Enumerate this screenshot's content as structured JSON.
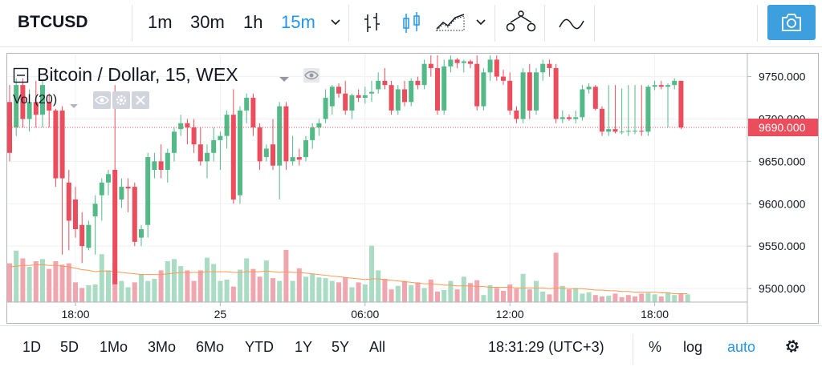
{
  "toolbar": {
    "symbol": "BTCUSD",
    "intervals": [
      "1m",
      "30m",
      "1h",
      "15m"
    ],
    "active_interval": "15m"
  },
  "legend": {
    "title": "Bitcoin / Dollar, 15, WEX",
    "volume_label": "Vol (20)"
  },
  "bottom": {
    "ranges": [
      "1D",
      "5D",
      "1Mo",
      "3Mo",
      "6Mo",
      "YTD",
      "1Y",
      "5Y",
      "All"
    ],
    "clock": "18:31:29 (UTC+3)",
    "percent_label": "%",
    "log_label": "log",
    "auto_label": "auto"
  },
  "colors": {
    "up": "#53b987",
    "down": "#eb4d5c",
    "up_volume": "#a9dcc3",
    "down_volume": "#f0a6ae",
    "volume_ma": "#ff9850",
    "last_price": "#eb4d5c",
    "active": "#2196f3",
    "camera_button": "#3d9fdd"
  },
  "chart_data": {
    "type": "candlestick",
    "symbol": "BTCUSD",
    "interval": "15",
    "exchange": "WEX",
    "last_price_label": "9690.000",
    "last_price": 9690,
    "y_ticks": [
      "9750.000",
      "9700.000",
      "9650.000",
      "9600.000",
      "9550.000",
      "9500.000"
    ],
    "y_tick_values": [
      9750,
      9700,
      9650,
      9600,
      9550,
      9500
    ],
    "ylim": [
      9484,
      9777
    ],
    "x_ticks": [
      "18:00",
      "25",
      "06:00",
      "12:00",
      "18:00"
    ],
    "x_tick_bar_index": [
      10,
      32,
      54,
      76,
      98
    ],
    "grid": true,
    "volume_overlay": {
      "label": "Vol (20)",
      "max_relative_height": 1.0,
      "values": [
        0.55,
        0.73,
        0.62,
        0.5,
        0.58,
        0.61,
        0.47,
        0.58,
        0.53,
        0.55,
        0.28,
        0.2,
        0.24,
        0.25,
        0.68,
        0.45,
        0.56,
        0.3,
        0.21,
        0.28,
        0.4,
        0.3,
        0.33,
        0.45,
        0.58,
        0.61,
        0.51,
        0.45,
        0.3,
        0.45,
        0.63,
        0.54,
        0.3,
        0.32,
        0.22,
        0.46,
        0.62,
        0.47,
        0.36,
        0.59,
        0.34,
        0.3,
        0.74,
        0.3,
        0.48,
        0.36,
        0.4,
        0.35,
        0.34,
        0.3,
        0.28,
        0.35,
        0.21,
        0.28,
        0.25,
        0.8,
        0.45,
        0.33,
        0.18,
        0.23,
        0.3,
        0.24,
        0.28,
        0.2,
        0.32,
        0.15,
        0.17,
        0.3,
        0.18,
        0.36,
        0.27,
        0.31,
        0.1,
        0.24,
        0.2,
        0.16,
        0.25,
        0.19,
        0.4,
        0.18,
        0.3,
        0.15,
        0.11,
        0.7,
        0.23,
        0.18,
        0.2,
        0.12,
        0.14,
        0.1,
        0.08,
        0.09,
        0.12,
        0.07,
        0.1,
        0.08,
        0.12,
        0.13,
        0.11,
        0.08,
        0.14,
        0.1,
        0.12,
        0.11
      ],
      "ma": [
        0.5,
        0.51,
        0.52,
        0.52,
        0.53,
        0.53,
        0.52,
        0.52,
        0.51,
        0.5,
        0.48,
        0.46,
        0.45,
        0.43,
        0.44,
        0.44,
        0.43,
        0.42,
        0.41,
        0.4,
        0.39,
        0.39,
        0.39,
        0.39,
        0.4,
        0.41,
        0.42,
        0.42,
        0.42,
        0.42,
        0.43,
        0.43,
        0.43,
        0.43,
        0.42,
        0.42,
        0.43,
        0.43,
        0.43,
        0.44,
        0.43,
        0.42,
        0.43,
        0.42,
        0.42,
        0.41,
        0.4,
        0.39,
        0.38,
        0.37,
        0.36,
        0.35,
        0.34,
        0.33,
        0.32,
        0.33,
        0.33,
        0.32,
        0.31,
        0.3,
        0.29,
        0.28,
        0.27,
        0.26,
        0.26,
        0.25,
        0.24,
        0.24,
        0.23,
        0.23,
        0.23,
        0.22,
        0.22,
        0.21,
        0.21,
        0.21,
        0.21,
        0.2,
        0.2,
        0.2,
        0.2,
        0.2,
        0.19,
        0.2,
        0.2,
        0.19,
        0.19,
        0.19,
        0.18,
        0.17,
        0.17,
        0.16,
        0.16,
        0.15,
        0.15,
        0.14,
        0.14,
        0.14,
        0.14,
        0.13,
        0.13,
        0.12,
        0.12,
        0.12
      ]
    },
    "candles": [
      {
        "o": 9720,
        "h": 9740,
        "l": 9650,
        "c": 9660,
        "v_up": false
      },
      {
        "o": 9690,
        "h": 9748,
        "l": 9680,
        "c": 9740,
        "v_up": true
      },
      {
        "o": 9740,
        "h": 9748,
        "l": 9690,
        "c": 9700,
        "v_up": false
      },
      {
        "o": 9700,
        "h": 9735,
        "l": 9685,
        "c": 9720,
        "v_up": true
      },
      {
        "o": 9720,
        "h": 9745,
        "l": 9690,
        "c": 9705,
        "v_up": false
      },
      {
        "o": 9705,
        "h": 9745,
        "l": 9690,
        "c": 9740,
        "v_up": true
      },
      {
        "o": 9720,
        "h": 9730,
        "l": 9690,
        "c": 9710,
        "v_up": false
      },
      {
        "o": 9710,
        "h": 9712,
        "l": 9620,
        "c": 9630,
        "v_up": false
      },
      {
        "o": 9710,
        "h": 9715,
        "l": 9540,
        "c": 9630,
        "v_up": false
      },
      {
        "o": 9625,
        "h": 9640,
        "l": 9545,
        "c": 9580,
        "v_up": false
      },
      {
        "o": 9605,
        "h": 9620,
        "l": 9560,
        "c": 9570,
        "v_up": false
      },
      {
        "o": 9575,
        "h": 9590,
        "l": 9530,
        "c": 9550,
        "v_up": false
      },
      {
        "o": 9548,
        "h": 9580,
        "l": 9545,
        "c": 9575,
        "v_up": true
      },
      {
        "o": 9585,
        "h": 9610,
        "l": 9540,
        "c": 9600,
        "v_up": true
      },
      {
        "o": 9610,
        "h": 9630,
        "l": 9580,
        "c": 9625,
        "v_up": true
      },
      {
        "o": 9625,
        "h": 9640,
        "l": 9610,
        "c": 9635,
        "v_up": true
      },
      {
        "o": 9640,
        "h": 9740,
        "l": 9505,
        "c": 9505,
        "v_up": false
      },
      {
        "o": 9605,
        "h": 9630,
        "l": 9595,
        "c": 9620,
        "v_up": true
      },
      {
        "o": 9620,
        "h": 9630,
        "l": 9590,
        "c": 9618,
        "v_up": true
      },
      {
        "o": 9620,
        "h": 9625,
        "l": 9550,
        "c": 9555,
        "v_up": false
      },
      {
        "o": 9560,
        "h": 9575,
        "l": 9550,
        "c": 9570,
        "v_up": true
      },
      {
        "o": 9575,
        "h": 9660,
        "l": 9560,
        "c": 9655,
        "v_up": true
      },
      {
        "o": 9640,
        "h": 9660,
        "l": 9630,
        "c": 9650,
        "v_up": true
      },
      {
        "o": 9650,
        "h": 9670,
        "l": 9630,
        "c": 9640,
        "v_up": false
      },
      {
        "o": 9640,
        "h": 9665,
        "l": 9625,
        "c": 9660,
        "v_up": true
      },
      {
        "o": 9660,
        "h": 9690,
        "l": 9650,
        "c": 9685,
        "v_up": true
      },
      {
        "o": 9688,
        "h": 9705,
        "l": 9680,
        "c": 9695,
        "v_up": true
      },
      {
        "o": 9695,
        "h": 9700,
        "l": 9670,
        "c": 9690,
        "v_up": false
      },
      {
        "o": 9690,
        "h": 9700,
        "l": 9660,
        "c": 9670,
        "v_up": false
      },
      {
        "o": 9670,
        "h": 9690,
        "l": 9645,
        "c": 9650,
        "v_up": false
      },
      {
        "o": 9650,
        "h": 9670,
        "l": 9630,
        "c": 9660,
        "v_up": true
      },
      {
        "o": 9660,
        "h": 9690,
        "l": 9650,
        "c": 9675,
        "v_up": true
      },
      {
        "o": 9675,
        "h": 9685,
        "l": 9640,
        "c": 9680,
        "v_up": true
      },
      {
        "o": 9680,
        "h": 9710,
        "l": 9665,
        "c": 9705,
        "v_up": true
      },
      {
        "o": 9705,
        "h": 9735,
        "l": 9600,
        "c": 9605,
        "v_up": false
      },
      {
        "o": 9610,
        "h": 9715,
        "l": 9600,
        "c": 9710,
        "v_up": true
      },
      {
        "o": 9710,
        "h": 9730,
        "l": 9695,
        "c": 9725,
        "v_up": true
      },
      {
        "o": 9725,
        "h": 9730,
        "l": 9680,
        "c": 9690,
        "v_up": false
      },
      {
        "o": 9690,
        "h": 9695,
        "l": 9640,
        "c": 9650,
        "v_up": false
      },
      {
        "o": 9655,
        "h": 9670,
        "l": 9650,
        "c": 9665,
        "v_up": true
      },
      {
        "o": 9670,
        "h": 9700,
        "l": 9640,
        "c": 9645,
        "v_up": false
      },
      {
        "o": 9645,
        "h": 9720,
        "l": 9605,
        "c": 9715,
        "v_up": true
      },
      {
        "o": 9715,
        "h": 9720,
        "l": 9640,
        "c": 9650,
        "v_up": false
      },
      {
        "o": 9650,
        "h": 9680,
        "l": 9645,
        "c": 9655,
        "v_up": true
      },
      {
        "o": 9655,
        "h": 9665,
        "l": 9645,
        "c": 9652,
        "v_up": false
      },
      {
        "o": 9655,
        "h": 9680,
        "l": 9650,
        "c": 9675,
        "v_up": true
      },
      {
        "o": 9675,
        "h": 9695,
        "l": 9665,
        "c": 9690,
        "v_up": true
      },
      {
        "o": 9690,
        "h": 9700,
        "l": 9680,
        "c": 9695,
        "v_up": true
      },
      {
        "o": 9700,
        "h": 9735,
        "l": 9695,
        "c": 9725,
        "v_up": true
      },
      {
        "o": 9715,
        "h": 9740,
        "l": 9705,
        "c": 9738,
        "v_up": true
      },
      {
        "o": 9738,
        "h": 9742,
        "l": 9725,
        "c": 9730,
        "v_up": false
      },
      {
        "o": 9730,
        "h": 9745,
        "l": 9705,
        "c": 9710,
        "v_up": false
      },
      {
        "o": 9710,
        "h": 9730,
        "l": 9700,
        "c": 9728,
        "v_up": true
      },
      {
        "o": 9728,
        "h": 9735,
        "l": 9720,
        "c": 9725,
        "v_up": false
      },
      {
        "o": 9725,
        "h": 9738,
        "l": 9718,
        "c": 9728,
        "v_up": true
      },
      {
        "o": 9730,
        "h": 9745,
        "l": 9720,
        "c": 9732,
        "v_up": true
      },
      {
        "o": 9735,
        "h": 9755,
        "l": 9730,
        "c": 9745,
        "v_up": true
      },
      {
        "o": 9745,
        "h": 9760,
        "l": 9735,
        "c": 9740,
        "v_up": false
      },
      {
        "o": 9740,
        "h": 9745,
        "l": 9705,
        "c": 9710,
        "v_up": false
      },
      {
        "o": 9710,
        "h": 9740,
        "l": 9705,
        "c": 9735,
        "v_up": true
      },
      {
        "o": 9735,
        "h": 9745,
        "l": 9715,
        "c": 9720,
        "v_up": false
      },
      {
        "o": 9720,
        "h": 9748,
        "l": 9715,
        "c": 9745,
        "v_up": true
      },
      {
        "o": 9745,
        "h": 9750,
        "l": 9735,
        "c": 9740,
        "v_up": false
      },
      {
        "o": 9740,
        "h": 9770,
        "l": 9735,
        "c": 9765,
        "v_up": true
      },
      {
        "o": 9765,
        "h": 9775,
        "l": 9750,
        "c": 9760,
        "v_up": false
      },
      {
        "o": 9760,
        "h": 9775,
        "l": 9705,
        "c": 9710,
        "v_up": false
      },
      {
        "o": 9710,
        "h": 9770,
        "l": 9705,
        "c": 9762,
        "v_up": true
      },
      {
        "o": 9762,
        "h": 9775,
        "l": 9755,
        "c": 9770,
        "v_up": true
      },
      {
        "o": 9770,
        "h": 9772,
        "l": 9760,
        "c": 9766,
        "v_up": false
      },
      {
        "o": 9766,
        "h": 9770,
        "l": 9755,
        "c": 9768,
        "v_up": true
      },
      {
        "o": 9768,
        "h": 9770,
        "l": 9760,
        "c": 9765,
        "v_up": false
      },
      {
        "o": 9765,
        "h": 9775,
        "l": 9710,
        "c": 9715,
        "v_up": false
      },
      {
        "o": 9715,
        "h": 9760,
        "l": 9710,
        "c": 9755,
        "v_up": true
      },
      {
        "o": 9755,
        "h": 9775,
        "l": 9745,
        "c": 9770,
        "v_up": true
      },
      {
        "o": 9770,
        "h": 9775,
        "l": 9745,
        "c": 9750,
        "v_up": false
      },
      {
        "o": 9750,
        "h": 9758,
        "l": 9740,
        "c": 9745,
        "v_up": false
      },
      {
        "o": 9745,
        "h": 9755,
        "l": 9705,
        "c": 9710,
        "v_up": false
      },
      {
        "o": 9710,
        "h": 9715,
        "l": 9695,
        "c": 9700,
        "v_up": false
      },
      {
        "o": 9700,
        "h": 9760,
        "l": 9695,
        "c": 9755,
        "v_up": true
      },
      {
        "o": 9755,
        "h": 9765,
        "l": 9700,
        "c": 9710,
        "v_up": false
      },
      {
        "o": 9710,
        "h": 9760,
        "l": 9705,
        "c": 9755,
        "v_up": true
      },
      {
        "o": 9755,
        "h": 9770,
        "l": 9745,
        "c": 9765,
        "v_up": true
      },
      {
        "o": 9765,
        "h": 9770,
        "l": 9750,
        "c": 9760,
        "v_up": false
      },
      {
        "o": 9760,
        "h": 9765,
        "l": 9695,
        "c": 9700,
        "v_up": false
      },
      {
        "o": 9700,
        "h": 9710,
        "l": 9695,
        "c": 9702,
        "v_up": true
      },
      {
        "o": 9702,
        "h": 9705,
        "l": 9698,
        "c": 9700,
        "v_up": false
      },
      {
        "o": 9700,
        "h": 9710,
        "l": 9695,
        "c": 9702,
        "v_up": true
      },
      {
        "o": 9702,
        "h": 9740,
        "l": 9698,
        "c": 9735,
        "v_up": true
      },
      {
        "o": 9735,
        "h": 9742,
        "l": 9730,
        "c": 9738,
        "v_up": true
      },
      {
        "o": 9738,
        "h": 9740,
        "l": 9710,
        "c": 9712,
        "v_up": false
      },
      {
        "o": 9712,
        "h": 9715,
        "l": 9680,
        "c": 9685,
        "v_up": false
      },
      {
        "o": 9685,
        "h": 9740,
        "l": 9680,
        "c": 9688,
        "v_up": true
      },
      {
        "o": 9688,
        "h": 9740,
        "l": 9683,
        "c": 9685,
        "v_up": false
      },
      {
        "o": 9685,
        "h": 9736,
        "l": 9682,
        "c": 9685,
        "v_up": false
      },
      {
        "o": 9685,
        "h": 9740,
        "l": 9680,
        "c": 9686,
        "v_up": false
      },
      {
        "o": 9686,
        "h": 9740,
        "l": 9682,
        "c": 9686,
        "v_up": false
      },
      {
        "o": 9686,
        "h": 9740,
        "l": 9680,
        "c": 9685,
        "v_up": false
      },
      {
        "o": 9685,
        "h": 9740,
        "l": 9680,
        "c": 9738,
        "v_up": true
      },
      {
        "o": 9738,
        "h": 9745,
        "l": 9734,
        "c": 9740,
        "v_up": true
      },
      {
        "o": 9740,
        "h": 9745,
        "l": 9735,
        "c": 9738,
        "v_up": false
      },
      {
        "o": 9738,
        "h": 9742,
        "l": 9690,
        "c": 9740,
        "v_up": true
      },
      {
        "o": 9740,
        "h": 9748,
        "l": 9735,
        "c": 9745,
        "v_up": true
      },
      {
        "o": 9745,
        "h": 9745,
        "l": 9688,
        "c": 9690,
        "v_up": false
      }
    ]
  }
}
